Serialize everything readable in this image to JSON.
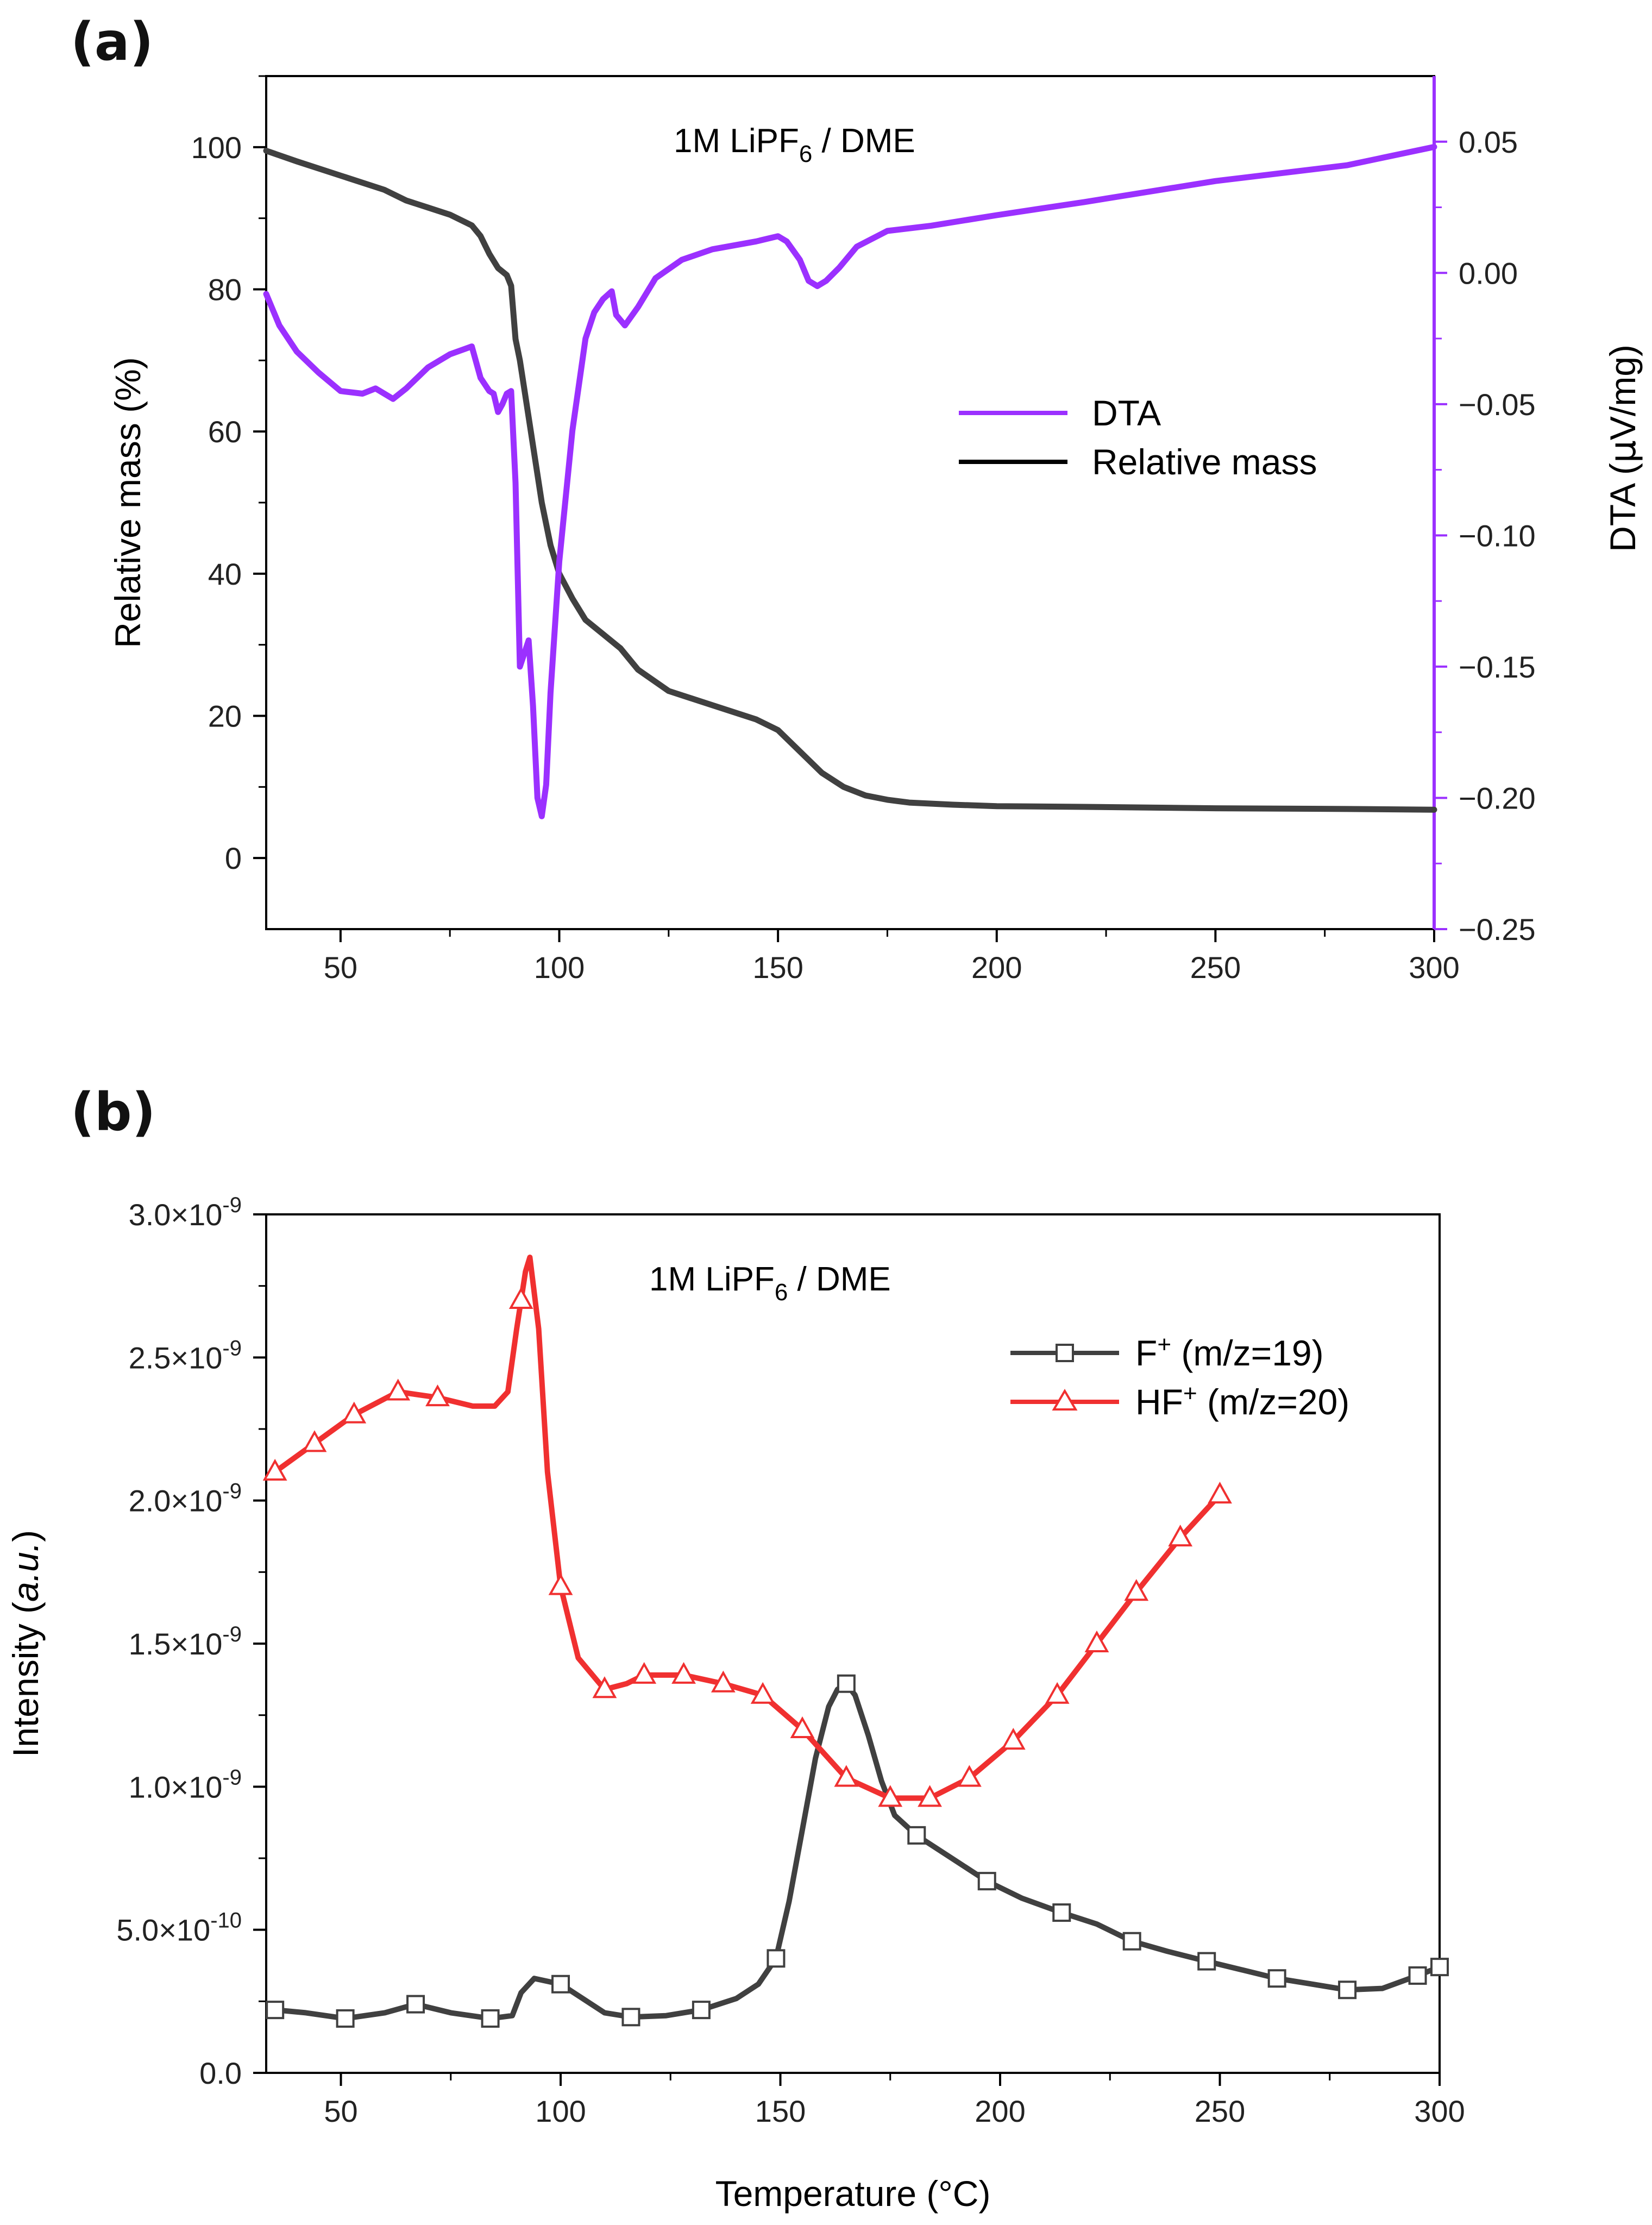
{
  "colors": {
    "mass": "#404040",
    "dta": "#9b30ff",
    "f_plus": "#404040",
    "hf_plus": "#f03030",
    "axis": "#000000"
  },
  "chart_data": [
    {
      "panel_label": "(a)",
      "type": "line",
      "annotation_parts": [
        "1M LiPF",
        "6",
        " / DME"
      ],
      "xlim": [
        33,
        300
      ],
      "x_ticks": [
        50,
        100,
        150,
        200,
        250,
        300
      ],
      "x_tick_labels": [
        "50",
        "100",
        "150",
        "200",
        "250",
        "300"
      ],
      "y_left": {
        "label": "Relative mass (%)",
        "lim": [
          -10,
          110
        ],
        "ticks": [
          0,
          20,
          40,
          60,
          80,
          100
        ],
        "tick_labels": [
          "0",
          "20",
          "40",
          "60",
          "80",
          "100"
        ]
      },
      "y_right": {
        "label_prefix": "DTA (",
        "label_mu": "μ",
        "label_suffix": "V/mg)",
        "lim": [
          -0.25,
          0.075
        ],
        "ticks": [
          -0.25,
          -0.2,
          -0.15,
          -0.1,
          -0.05,
          0.0,
          0.05
        ],
        "tick_labels": [
          "−0.25",
          "−0.20",
          "−0.15",
          "−0.10",
          "−0.05",
          "0.00",
          "0.05"
        ]
      },
      "legend": [
        "DTA",
        "Relative mass"
      ],
      "series": [
        {
          "name": "Relative mass",
          "axis": "left",
          "x": [
            33,
            40,
            50,
            60,
            65,
            70,
            75,
            80,
            82,
            84,
            86,
            88,
            89,
            90,
            91,
            92,
            94,
            96,
            98,
            100,
            103,
            106,
            110,
            114,
            118,
            125,
            135,
            145,
            150,
            155,
            160,
            165,
            170,
            175,
            180,
            190,
            200,
            220,
            250,
            280,
            300
          ],
          "y": [
            99.5,
            98,
            96,
            94,
            92.5,
            91.5,
            90.5,
            89,
            87.5,
            85,
            83,
            82,
            80.5,
            73,
            70,
            66,
            58,
            50,
            44,
            40,
            36.5,
            33.5,
            31.5,
            29.5,
            26.5,
            23.5,
            21.5,
            19.5,
            18,
            15,
            12,
            10,
            8.8,
            8.2,
            7.8,
            7.5,
            7.3,
            7.2,
            7.0,
            6.9,
            6.8
          ]
        },
        {
          "name": "DTA",
          "axis": "right",
          "x": [
            33,
            36,
            40,
            45,
            50,
            55,
            58,
            60,
            62,
            65,
            70,
            75,
            80,
            82,
            84,
            85,
            86,
            87,
            88,
            89,
            90,
            91,
            92,
            93,
            94,
            95,
            96,
            97,
            98,
            100,
            103,
            106,
            108,
            110,
            112,
            113,
            115,
            118,
            122,
            128,
            135,
            145,
            150,
            152,
            155,
            157,
            159,
            161,
            164,
            168,
            175,
            185,
            200,
            220,
            250,
            280,
            300
          ],
          "y": [
            -0.008,
            -0.02,
            -0.03,
            -0.038,
            -0.045,
            -0.046,
            -0.044,
            -0.046,
            -0.048,
            -0.044,
            -0.036,
            -0.031,
            -0.028,
            -0.04,
            -0.045,
            -0.046,
            -0.053,
            -0.05,
            -0.046,
            -0.045,
            -0.08,
            -0.15,
            -0.145,
            -0.14,
            -0.165,
            -0.2,
            -0.207,
            -0.195,
            -0.16,
            -0.11,
            -0.06,
            -0.025,
            -0.015,
            -0.01,
            -0.007,
            -0.016,
            -0.02,
            -0.013,
            -0.002,
            0.005,
            0.009,
            0.012,
            0.014,
            0.012,
            0.005,
            -0.003,
            -0.005,
            -0.003,
            0.002,
            0.01,
            0.016,
            0.018,
            0.022,
            0.027,
            0.035,
            0.041,
            0.048
          ]
        }
      ]
    },
    {
      "panel_label": "(b)",
      "type": "line",
      "annotation_parts": [
        "1M LiPF",
        "6",
        " / DME"
      ],
      "xlim": [
        33,
        300
      ],
      "x_ticks": [
        50,
        100,
        150,
        200,
        250,
        300
      ],
      "x_tick_labels": [
        "50",
        "100",
        "150",
        "200",
        "250",
        "300"
      ],
      "xlabel": "Temperature (°C)",
      "y_left": {
        "label_prefix": "Intensity (",
        "label_italic": "a.u.",
        "label_suffix": ")",
        "lim": [
          0,
          3e-09
        ],
        "ticks": [
          0,
          5e-10,
          1e-09,
          1.5e-09,
          2e-09,
          2.5e-09,
          3e-09
        ],
        "tick_mantissas": [
          "0.0",
          "5.0×10",
          "1.0×10",
          "1.5×10",
          "2.0×10",
          "2.5×10",
          "3.0×10"
        ],
        "tick_exponents": [
          "",
          "-10",
          "-9",
          "-9",
          "-9",
          "-9",
          "-9"
        ]
      },
      "legend": [
        {
          "base": "F",
          "sup": "+",
          "rest": " (m/z=19)",
          "marker": "square"
        },
        {
          "base": "HF",
          "sup": "+",
          "rest": " (m/z=20)",
          "marker": "triangle"
        }
      ],
      "series": [
        {
          "name": "F+ (m/z=19)",
          "marker": "square",
          "x": [
            35,
            42,
            51,
            60,
            67,
            75,
            84,
            89,
            91,
            94,
            97,
            100,
            105,
            110,
            116,
            124,
            132,
            140,
            145,
            149,
            152,
            155,
            158,
            161,
            163,
            165,
            167,
            170,
            173,
            176,
            181,
            188,
            197,
            205,
            214,
            222,
            230,
            238,
            247,
            255,
            263,
            271,
            279,
            287,
            295,
            300
          ],
          "y": [
            2.2e-10,
            2.1e-10,
            1.9e-10,
            2.1e-10,
            2.4e-10,
            2.1e-10,
            1.9e-10,
            2e-10,
            2.8e-10,
            3.3e-10,
            3.2e-10,
            3.1e-10,
            2.6e-10,
            2.1e-10,
            1.95e-10,
            2e-10,
            2.2e-10,
            2.6e-10,
            3.1e-10,
            4e-10,
            6e-10,
            8.5e-10,
            1.1e-09,
            1.28e-09,
            1.34e-09,
            1.36e-09,
            1.32e-09,
            1.18e-09,
            1.02e-09,
            9e-10,
            8.3e-10,
            7.6e-10,
            6.7e-10,
            6.1e-10,
            5.6e-10,
            5.2e-10,
            4.6e-10,
            4.25e-10,
            3.9e-10,
            3.6e-10,
            3.3e-10,
            3.1e-10,
            2.9e-10,
            2.95e-10,
            3.4e-10,
            3.7e-10
          ],
          "marker_x": [
            35,
            51,
            67,
            84,
            100,
            116,
            132,
            149,
            165,
            181,
            197,
            214,
            230,
            247,
            263,
            279,
            295,
            300
          ],
          "marker_y": [
            2.2e-10,
            1.9e-10,
            2.4e-10,
            1.9e-10,
            3.1e-10,
            1.95e-10,
            2.2e-10,
            4e-10,
            1.36e-09,
            8.3e-10,
            6.7e-10,
            5.6e-10,
            4.6e-10,
            3.9e-10,
            3.3e-10,
            2.9e-10,
            3.4e-10,
            3.7e-10
          ]
        },
        {
          "name": "HF+ (m/z=20)",
          "marker": "triangle",
          "x": [
            35,
            44,
            53,
            63,
            72,
            80,
            85,
            88,
            90,
            92,
            93,
            95,
            97,
            100,
            104,
            110,
            115,
            119,
            128,
            137,
            146,
            155,
            165,
            175,
            184,
            193,
            203,
            213,
            222,
            231,
            241,
            250
          ],
          "y": [
            2.1e-09,
            2.2e-09,
            2.3e-09,
            2.38e-09,
            2.36e-09,
            2.33e-09,
            2.33e-09,
            2.38e-09,
            2.6e-09,
            2.8e-09,
            2.85e-09,
            2.6e-09,
            2.1e-09,
            1.7e-09,
            1.45e-09,
            1.34e-09,
            1.36e-09,
            1.39e-09,
            1.39e-09,
            1.36e-09,
            1.32e-09,
            1.2e-09,
            1.03e-09,
            9.6e-10,
            9.6e-10,
            1.03e-09,
            1.16e-09,
            1.32e-09,
            1.5e-09,
            1.68e-09,
            1.87e-09,
            2.02e-09
          ],
          "marker_x": [
            35,
            44,
            53,
            63,
            72,
            91,
            100,
            110,
            119,
            128,
            137,
            146,
            155,
            165,
            175,
            184,
            193,
            203,
            213,
            222,
            231,
            241,
            250
          ],
          "marker_y": [
            2.1e-09,
            2.2e-09,
            2.3e-09,
            2.38e-09,
            2.36e-09,
            2.7e-09,
            1.7e-09,
            1.34e-09,
            1.39e-09,
            1.39e-09,
            1.36e-09,
            1.32e-09,
            1.2e-09,
            1.03e-09,
            9.6e-10,
            9.6e-10,
            1.03e-09,
            1.16e-09,
            1.32e-09,
            1.5e-09,
            1.68e-09,
            1.87e-09,
            2.02e-09
          ]
        }
      ]
    }
  ]
}
